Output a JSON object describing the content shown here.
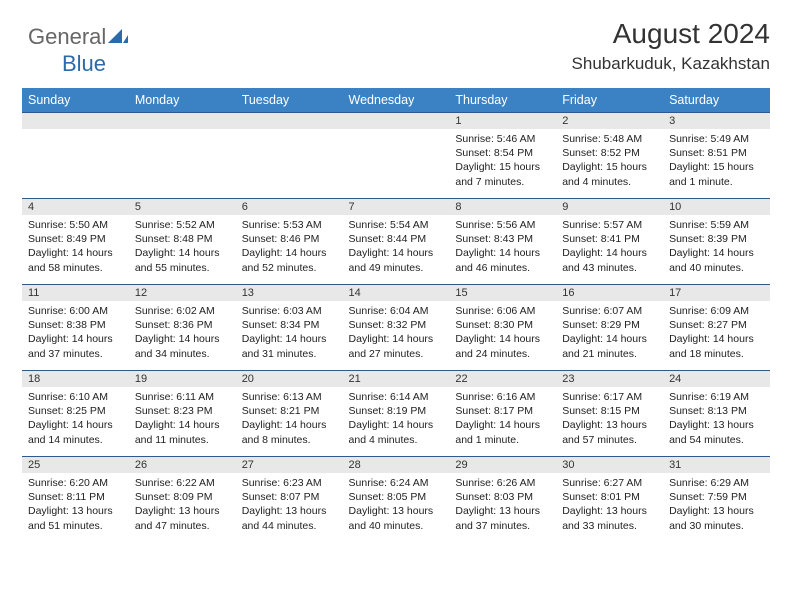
{
  "brand": {
    "part1": "General",
    "part2": "Blue"
  },
  "title": "August 2024",
  "location": "Shubarkuduk, Kazakhstan",
  "colors": {
    "header_bg": "#3b82c4",
    "header_text": "#ffffff",
    "daynum_bg": "#e8e8e8",
    "border": "#2d5a8a",
    "text": "#222222",
    "brand_gray": "#666666",
    "brand_blue": "#2d6aa8"
  },
  "day_labels": [
    "Sunday",
    "Monday",
    "Tuesday",
    "Wednesday",
    "Thursday",
    "Friday",
    "Saturday"
  ],
  "weeks": [
    [
      {
        "n": "",
        "sr": "",
        "ss": "",
        "dl": ""
      },
      {
        "n": "",
        "sr": "",
        "ss": "",
        "dl": ""
      },
      {
        "n": "",
        "sr": "",
        "ss": "",
        "dl": ""
      },
      {
        "n": "",
        "sr": "",
        "ss": "",
        "dl": ""
      },
      {
        "n": "1",
        "sr": "Sunrise: 5:46 AM",
        "ss": "Sunset: 8:54 PM",
        "dl": "Daylight: 15 hours and 7 minutes."
      },
      {
        "n": "2",
        "sr": "Sunrise: 5:48 AM",
        "ss": "Sunset: 8:52 PM",
        "dl": "Daylight: 15 hours and 4 minutes."
      },
      {
        "n": "3",
        "sr": "Sunrise: 5:49 AM",
        "ss": "Sunset: 8:51 PM",
        "dl": "Daylight: 15 hours and 1 minute."
      }
    ],
    [
      {
        "n": "4",
        "sr": "Sunrise: 5:50 AM",
        "ss": "Sunset: 8:49 PM",
        "dl": "Daylight: 14 hours and 58 minutes."
      },
      {
        "n": "5",
        "sr": "Sunrise: 5:52 AM",
        "ss": "Sunset: 8:48 PM",
        "dl": "Daylight: 14 hours and 55 minutes."
      },
      {
        "n": "6",
        "sr": "Sunrise: 5:53 AM",
        "ss": "Sunset: 8:46 PM",
        "dl": "Daylight: 14 hours and 52 minutes."
      },
      {
        "n": "7",
        "sr": "Sunrise: 5:54 AM",
        "ss": "Sunset: 8:44 PM",
        "dl": "Daylight: 14 hours and 49 minutes."
      },
      {
        "n": "8",
        "sr": "Sunrise: 5:56 AM",
        "ss": "Sunset: 8:43 PM",
        "dl": "Daylight: 14 hours and 46 minutes."
      },
      {
        "n": "9",
        "sr": "Sunrise: 5:57 AM",
        "ss": "Sunset: 8:41 PM",
        "dl": "Daylight: 14 hours and 43 minutes."
      },
      {
        "n": "10",
        "sr": "Sunrise: 5:59 AM",
        "ss": "Sunset: 8:39 PM",
        "dl": "Daylight: 14 hours and 40 minutes."
      }
    ],
    [
      {
        "n": "11",
        "sr": "Sunrise: 6:00 AM",
        "ss": "Sunset: 8:38 PM",
        "dl": "Daylight: 14 hours and 37 minutes."
      },
      {
        "n": "12",
        "sr": "Sunrise: 6:02 AM",
        "ss": "Sunset: 8:36 PM",
        "dl": "Daylight: 14 hours and 34 minutes."
      },
      {
        "n": "13",
        "sr": "Sunrise: 6:03 AM",
        "ss": "Sunset: 8:34 PM",
        "dl": "Daylight: 14 hours and 31 minutes."
      },
      {
        "n": "14",
        "sr": "Sunrise: 6:04 AM",
        "ss": "Sunset: 8:32 PM",
        "dl": "Daylight: 14 hours and 27 minutes."
      },
      {
        "n": "15",
        "sr": "Sunrise: 6:06 AM",
        "ss": "Sunset: 8:30 PM",
        "dl": "Daylight: 14 hours and 24 minutes."
      },
      {
        "n": "16",
        "sr": "Sunrise: 6:07 AM",
        "ss": "Sunset: 8:29 PM",
        "dl": "Daylight: 14 hours and 21 minutes."
      },
      {
        "n": "17",
        "sr": "Sunrise: 6:09 AM",
        "ss": "Sunset: 8:27 PM",
        "dl": "Daylight: 14 hours and 18 minutes."
      }
    ],
    [
      {
        "n": "18",
        "sr": "Sunrise: 6:10 AM",
        "ss": "Sunset: 8:25 PM",
        "dl": "Daylight: 14 hours and 14 minutes."
      },
      {
        "n": "19",
        "sr": "Sunrise: 6:11 AM",
        "ss": "Sunset: 8:23 PM",
        "dl": "Daylight: 14 hours and 11 minutes."
      },
      {
        "n": "20",
        "sr": "Sunrise: 6:13 AM",
        "ss": "Sunset: 8:21 PM",
        "dl": "Daylight: 14 hours and 8 minutes."
      },
      {
        "n": "21",
        "sr": "Sunrise: 6:14 AM",
        "ss": "Sunset: 8:19 PM",
        "dl": "Daylight: 14 hours and 4 minutes."
      },
      {
        "n": "22",
        "sr": "Sunrise: 6:16 AM",
        "ss": "Sunset: 8:17 PM",
        "dl": "Daylight: 14 hours and 1 minute."
      },
      {
        "n": "23",
        "sr": "Sunrise: 6:17 AM",
        "ss": "Sunset: 8:15 PM",
        "dl": "Daylight: 13 hours and 57 minutes."
      },
      {
        "n": "24",
        "sr": "Sunrise: 6:19 AM",
        "ss": "Sunset: 8:13 PM",
        "dl": "Daylight: 13 hours and 54 minutes."
      }
    ],
    [
      {
        "n": "25",
        "sr": "Sunrise: 6:20 AM",
        "ss": "Sunset: 8:11 PM",
        "dl": "Daylight: 13 hours and 51 minutes."
      },
      {
        "n": "26",
        "sr": "Sunrise: 6:22 AM",
        "ss": "Sunset: 8:09 PM",
        "dl": "Daylight: 13 hours and 47 minutes."
      },
      {
        "n": "27",
        "sr": "Sunrise: 6:23 AM",
        "ss": "Sunset: 8:07 PM",
        "dl": "Daylight: 13 hours and 44 minutes."
      },
      {
        "n": "28",
        "sr": "Sunrise: 6:24 AM",
        "ss": "Sunset: 8:05 PM",
        "dl": "Daylight: 13 hours and 40 minutes."
      },
      {
        "n": "29",
        "sr": "Sunrise: 6:26 AM",
        "ss": "Sunset: 8:03 PM",
        "dl": "Daylight: 13 hours and 37 minutes."
      },
      {
        "n": "30",
        "sr": "Sunrise: 6:27 AM",
        "ss": "Sunset: 8:01 PM",
        "dl": "Daylight: 13 hours and 33 minutes."
      },
      {
        "n": "31",
        "sr": "Sunrise: 6:29 AM",
        "ss": "Sunset: 7:59 PM",
        "dl": "Daylight: 13 hours and 30 minutes."
      }
    ]
  ]
}
